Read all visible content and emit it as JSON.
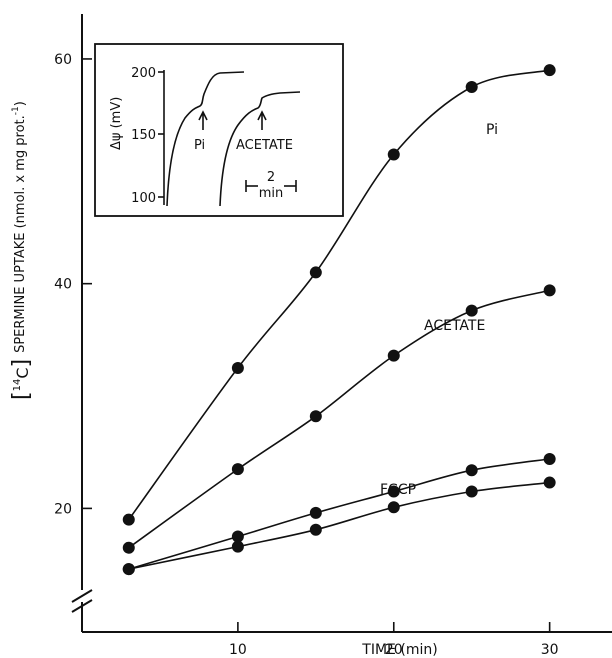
{
  "chart_data": {
    "type": "line",
    "xlabel": "TIME (min)",
    "ylabel": "[14C] SPERMINE UPTAKE (nmol. x mg prot.-1)",
    "ylabel_main": "SPERMINE UPTAKE (nmol. x mg prot.",
    "ylabel_isotope": "14",
    "ylabel_element": "C",
    "ylabel_exp": "-1",
    "xlim": [
      0,
      34
    ],
    "ylim": [
      9,
      64
    ],
    "x_ticks": [
      10,
      20,
      30
    ],
    "y_ticks": [
      20,
      40,
      60
    ],
    "series": [
      {
        "name": "Pi",
        "x": [
          3,
          10,
          15,
          20,
          25,
          30
        ],
        "y": [
          19,
          32.5,
          41,
          51.5,
          57.5,
          59
        ]
      },
      {
        "name": "ACETATE",
        "x": [
          3,
          10,
          15,
          20,
          25,
          30
        ],
        "y": [
          16.5,
          23.5,
          28.2,
          33.6,
          37.6,
          39.4
        ]
      },
      {
        "name": "",
        "x": [
          3,
          10,
          15,
          20,
          25,
          30
        ],
        "y": [
          14.6,
          17.5,
          19.6,
          21.5,
          23.4,
          24.4
        ]
      },
      {
        "name": "FCCP",
        "x": [
          3,
          10,
          15,
          20,
          25,
          30
        ],
        "y": [
          14.6,
          16.6,
          18.1,
          20.1,
          21.5,
          22.3
        ]
      }
    ],
    "inset": {
      "ylabel": "Δψ (mV)",
      "y_ticks": [
        100,
        150,
        200
      ],
      "ylim": [
        100,
        200
      ],
      "annotations": [
        "Pi",
        "ACETATE"
      ],
      "scale_bar_value": "2",
      "scale_bar_unit": "min"
    }
  }
}
